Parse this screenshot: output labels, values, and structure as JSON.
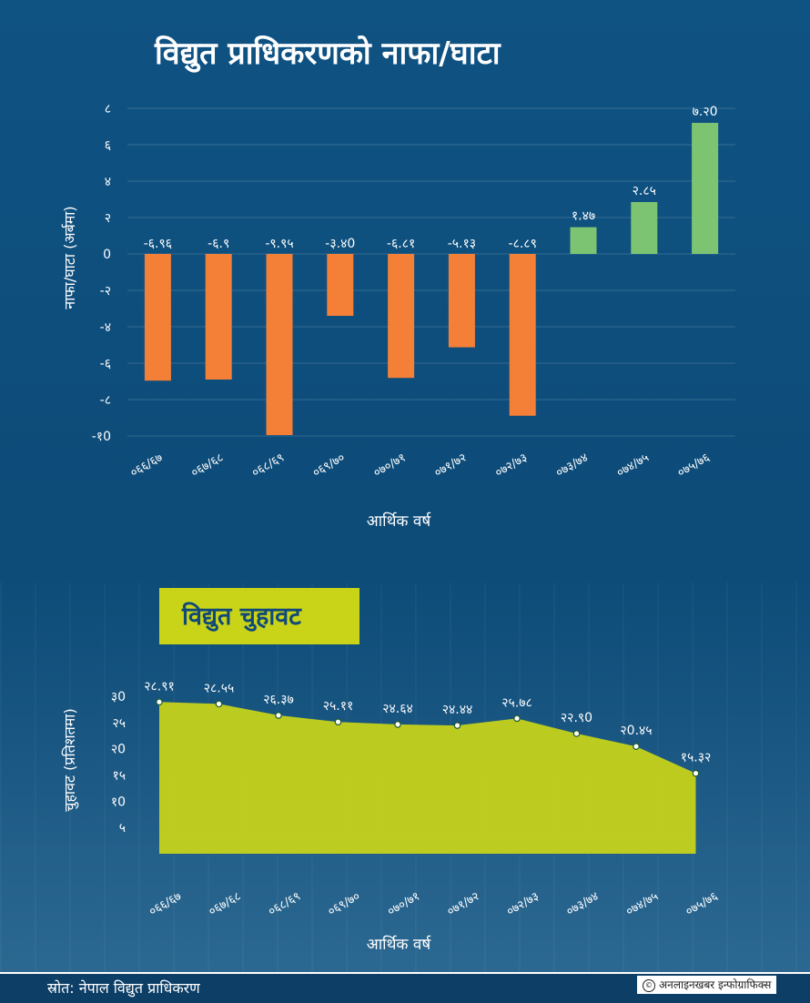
{
  "title": "विद्युत प्राधिकरणको नाफा/घाटा",
  "section2_title": "विद्युत चुहावट",
  "footer": {
    "source": "स्रोत: नेपाल विद्युत प्राधिकरण",
    "credit": "अनलाइनखबर इन्फोग्राफिक्स",
    "copyright_symbol": "©"
  },
  "colors": {
    "loss": "#f47f36",
    "profit": "#7dc472",
    "leakage_fill": "#c9d418",
    "background": "#0e4f7d"
  },
  "chart_data": [
    {
      "type": "bar",
      "title": "विद्युत प्राधिकरणको नाफा/घाटा",
      "xlabel": "आर्थिक वर्ष",
      "ylabel": "नाफा/घाटा (अर्बमा)",
      "ylim": [
        -10,
        8
      ],
      "yticks": [
        8,
        6,
        4,
        2,
        0,
        -2,
        -4,
        -6,
        -8,
        -10
      ],
      "ytick_labels": [
        "८",
        "६",
        "४",
        "२",
        "0",
        "-२",
        "-४",
        "-६",
        "-८",
        "-१0"
      ],
      "grid": true,
      "categories": [
        "०६६/६७",
        "०६७/६८",
        "०६८/६९",
        "०६९/७०",
        "०७०/७१",
        "०७१/७२",
        "०७२/७३",
        "०७३/७४",
        "०७४/७५",
        "०७५/७६"
      ],
      "values": [
        -6.96,
        -6.9,
        -9.95,
        -3.4,
        -6.81,
        -5.13,
        -8.89,
        1.47,
        2.85,
        7.2
      ],
      "value_labels": [
        "-६.९६",
        "-६.९",
        "-९.९५",
        "-३.४0",
        "-६.८१",
        "-५.१३",
        "-८.८९",
        "१.४७",
        "२.८५",
        "७.२0"
      ]
    },
    {
      "type": "area",
      "title": "विद्युत चुहावट",
      "xlabel": "आर्थिक वर्ष",
      "ylabel": "चुहावट (प्रतिशतमा)",
      "ylim": [
        0,
        30
      ],
      "yticks": [
        30,
        25,
        20,
        15,
        10,
        5
      ],
      "ytick_labels": [
        "३0",
        "२५",
        "२0",
        "१५",
        "१0",
        "५"
      ],
      "grid": false,
      "categories": [
        "०६६/६७",
        "०६७/६८",
        "०६८/६९",
        "०६९/७०",
        "०७०/७१",
        "०७१/७२",
        "०७२/७३",
        "०७३/७४",
        "०७४/७५",
        "०७५/७६"
      ],
      "values": [
        28.91,
        28.55,
        26.37,
        25.11,
        24.64,
        24.44,
        25.78,
        22.9,
        20.45,
        15.32
      ],
      "value_labels": [
        "२८.९१",
        "२८.५५",
        "२६.३७",
        "२५.११",
        "२४.६४",
        "२४.४४",
        "२५.७८",
        "२२.९0",
        "२0.४५",
        "१५.३२"
      ]
    }
  ]
}
